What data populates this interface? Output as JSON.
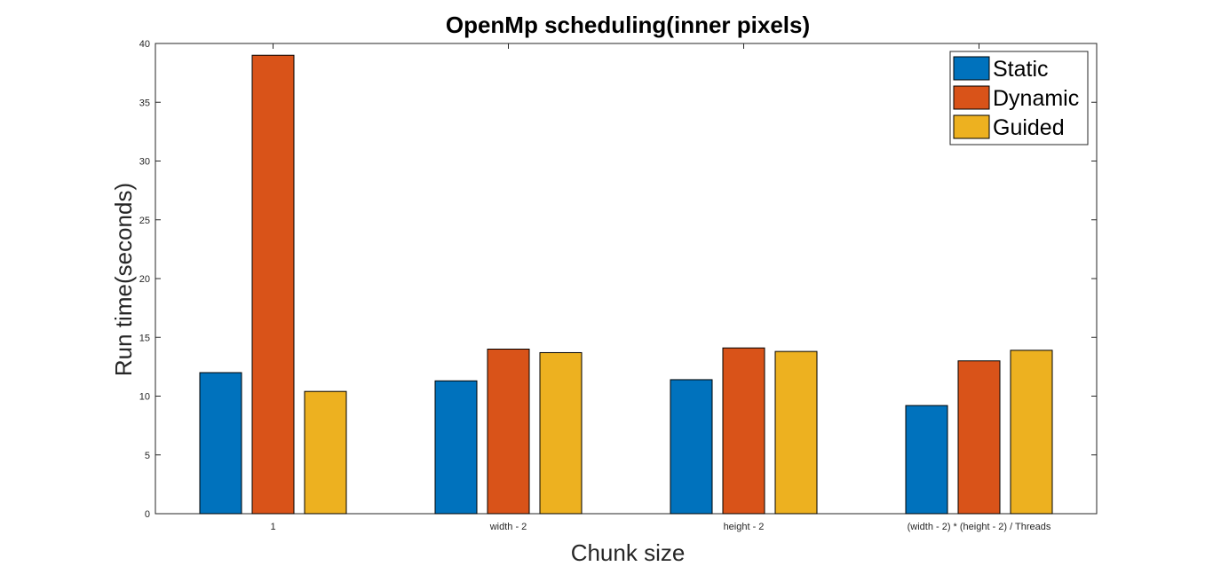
{
  "chart_data": {
    "type": "bar",
    "title": "OpenMp scheduling(inner pixels)",
    "xlabel": "Chunk size",
    "ylabel": "Run time(seconds)",
    "categories": [
      "1",
      "width - 2",
      "height - 2",
      "(width - 2) * (height - 2) / Threads"
    ],
    "ylim": [
      0,
      40
    ],
    "yticks": [
      0,
      5,
      10,
      15,
      20,
      25,
      30,
      35,
      40
    ],
    "grid": false,
    "legend_position": "top-right",
    "series": [
      {
        "name": "Static",
        "color": "#0072BD",
        "values": [
          12.0,
          11.3,
          11.4,
          9.2
        ]
      },
      {
        "name": "Dynamic",
        "color": "#D95319",
        "values": [
          39.0,
          14.0,
          14.1,
          13.0
        ]
      },
      {
        "name": "Guided",
        "color": "#EDB120",
        "values": [
          10.4,
          13.7,
          13.8,
          13.9
        ]
      }
    ]
  }
}
